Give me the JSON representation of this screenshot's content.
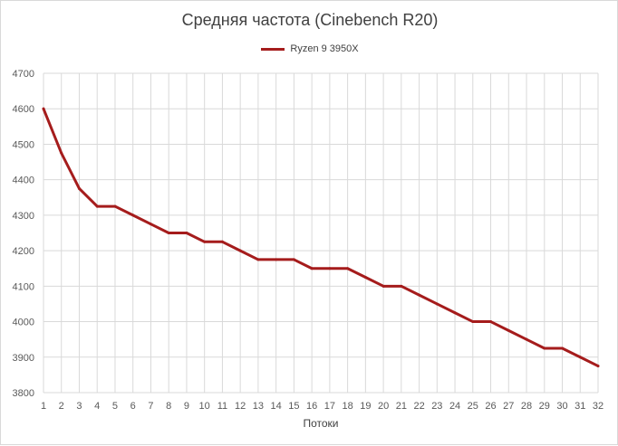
{
  "chart_data": {
    "type": "line",
    "title": "Средняя частота (Cinebench R20)",
    "xlabel": "Потоки",
    "ylabel": "",
    "categories": [
      "1",
      "2",
      "3",
      "4",
      "5",
      "6",
      "7",
      "8",
      "9",
      "10",
      "11",
      "12",
      "13",
      "14",
      "15",
      "16",
      "17",
      "18",
      "19",
      "20",
      "21",
      "22",
      "23",
      "24",
      "25",
      "26",
      "27",
      "28",
      "29",
      "30",
      "31",
      "32"
    ],
    "series": [
      {
        "name": "Ryzen 9 3950X",
        "color": "#a51c1c",
        "values": [
          4600,
          4475,
          4375,
          4325,
          4325,
          4300,
          4275,
          4250,
          4250,
          4225,
          4225,
          4200,
          4175,
          4175,
          4175,
          4150,
          4150,
          4150,
          4125,
          4100,
          4100,
          4075,
          4050,
          4025,
          4000,
          4000,
          3975,
          3950,
          3925,
          3925,
          3900,
          3875
        ]
      }
    ],
    "ylim": [
      3800,
      4700
    ],
    "yticks": [
      3800,
      3900,
      4000,
      4100,
      4200,
      4300,
      4400,
      4500,
      4600,
      4700
    ],
    "grid": true,
    "legend_position": "top"
  }
}
